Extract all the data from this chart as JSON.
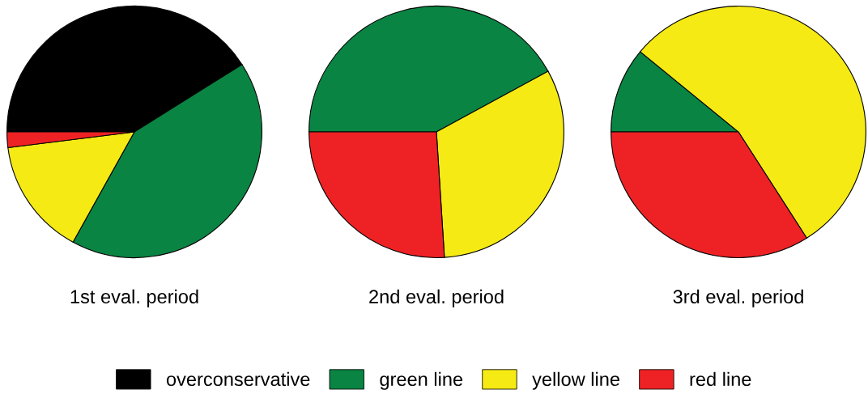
{
  "chart_data": [
    {
      "type": "pie",
      "title": "1st eval. period",
      "categories": [
        "overconservative",
        "green line",
        "yellow line",
        "red line"
      ],
      "values": [
        41,
        42,
        15,
        2
      ],
      "colors": [
        "#000000",
        "#0a8443",
        "#f5ea14",
        "#ee2224"
      ],
      "legend": "bottom"
    },
    {
      "type": "pie",
      "title": "2nd eval. period",
      "categories": [
        null,
        null,
        null
      ],
      "values": [
        42,
        32,
        26
      ],
      "colors": [
        "#0a8443",
        "#f5ea14",
        "#ee2224"
      ]
    },
    {
      "type": "pie",
      "title": "3rd eval. period",
      "categories": [
        null,
        null,
        null
      ],
      "values": [
        11,
        55,
        34
      ],
      "colors": [
        "#0a8443",
        "#f5ea14",
        "#ee2224"
      ]
    }
  ]
}
